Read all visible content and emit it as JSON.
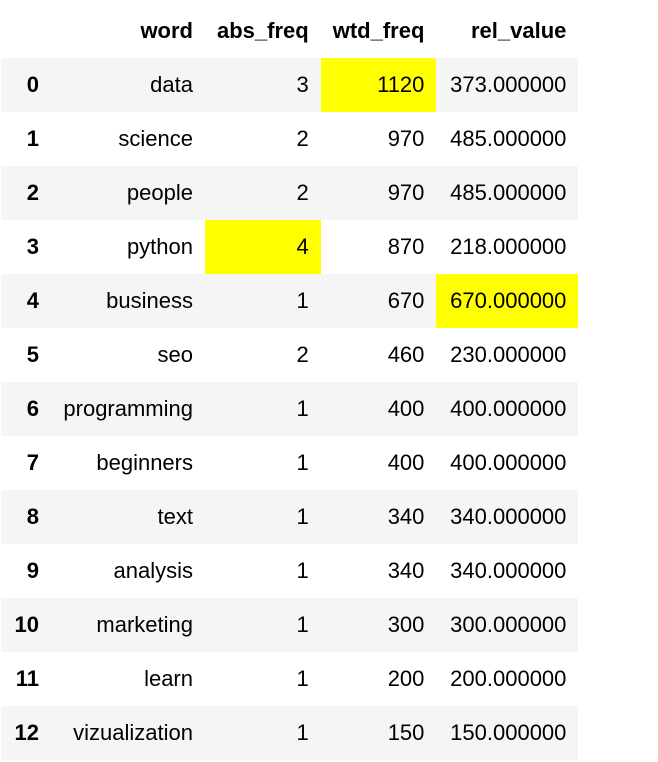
{
  "table": {
    "columns": [
      "",
      "word",
      "abs_freq",
      "wtd_freq",
      "rel_value"
    ],
    "rows": [
      {
        "index": "0",
        "word": "data",
        "abs_freq": "3",
        "wtd_freq": "1120",
        "rel_value": "373.000000"
      },
      {
        "index": "1",
        "word": "science",
        "abs_freq": "2",
        "wtd_freq": "970",
        "rel_value": "485.000000"
      },
      {
        "index": "2",
        "word": "people",
        "abs_freq": "2",
        "wtd_freq": "970",
        "rel_value": "485.000000"
      },
      {
        "index": "3",
        "word": "python",
        "abs_freq": "4",
        "wtd_freq": "870",
        "rel_value": "218.000000"
      },
      {
        "index": "4",
        "word": "business",
        "abs_freq": "1",
        "wtd_freq": "670",
        "rel_value": "670.000000"
      },
      {
        "index": "5",
        "word": "seo",
        "abs_freq": "2",
        "wtd_freq": "460",
        "rel_value": "230.000000"
      },
      {
        "index": "6",
        "word": "programming",
        "abs_freq": "1",
        "wtd_freq": "400",
        "rel_value": "400.000000"
      },
      {
        "index": "7",
        "word": "beginners",
        "abs_freq": "1",
        "wtd_freq": "400",
        "rel_value": "400.000000"
      },
      {
        "index": "8",
        "word": "text",
        "abs_freq": "1",
        "wtd_freq": "340",
        "rel_value": "340.000000"
      },
      {
        "index": "9",
        "word": "analysis",
        "abs_freq": "1",
        "wtd_freq": "340",
        "rel_value": "340.000000"
      },
      {
        "index": "10",
        "word": "marketing",
        "abs_freq": "1",
        "wtd_freq": "300",
        "rel_value": "300.000000"
      },
      {
        "index": "11",
        "word": "learn",
        "abs_freq": "1",
        "wtd_freq": "200",
        "rel_value": "200.000000"
      },
      {
        "index": "12",
        "word": "vizualization",
        "abs_freq": "1",
        "wtd_freq": "150",
        "rel_value": "150.000000"
      }
    ],
    "highlights": [
      {
        "row": 0,
        "column": "wtd_freq"
      },
      {
        "row": 3,
        "column": "abs_freq"
      },
      {
        "row": 4,
        "column": "rel_value"
      }
    ],
    "highlight_color": "#ffff00",
    "stripe_color": "#f5f5f5"
  }
}
